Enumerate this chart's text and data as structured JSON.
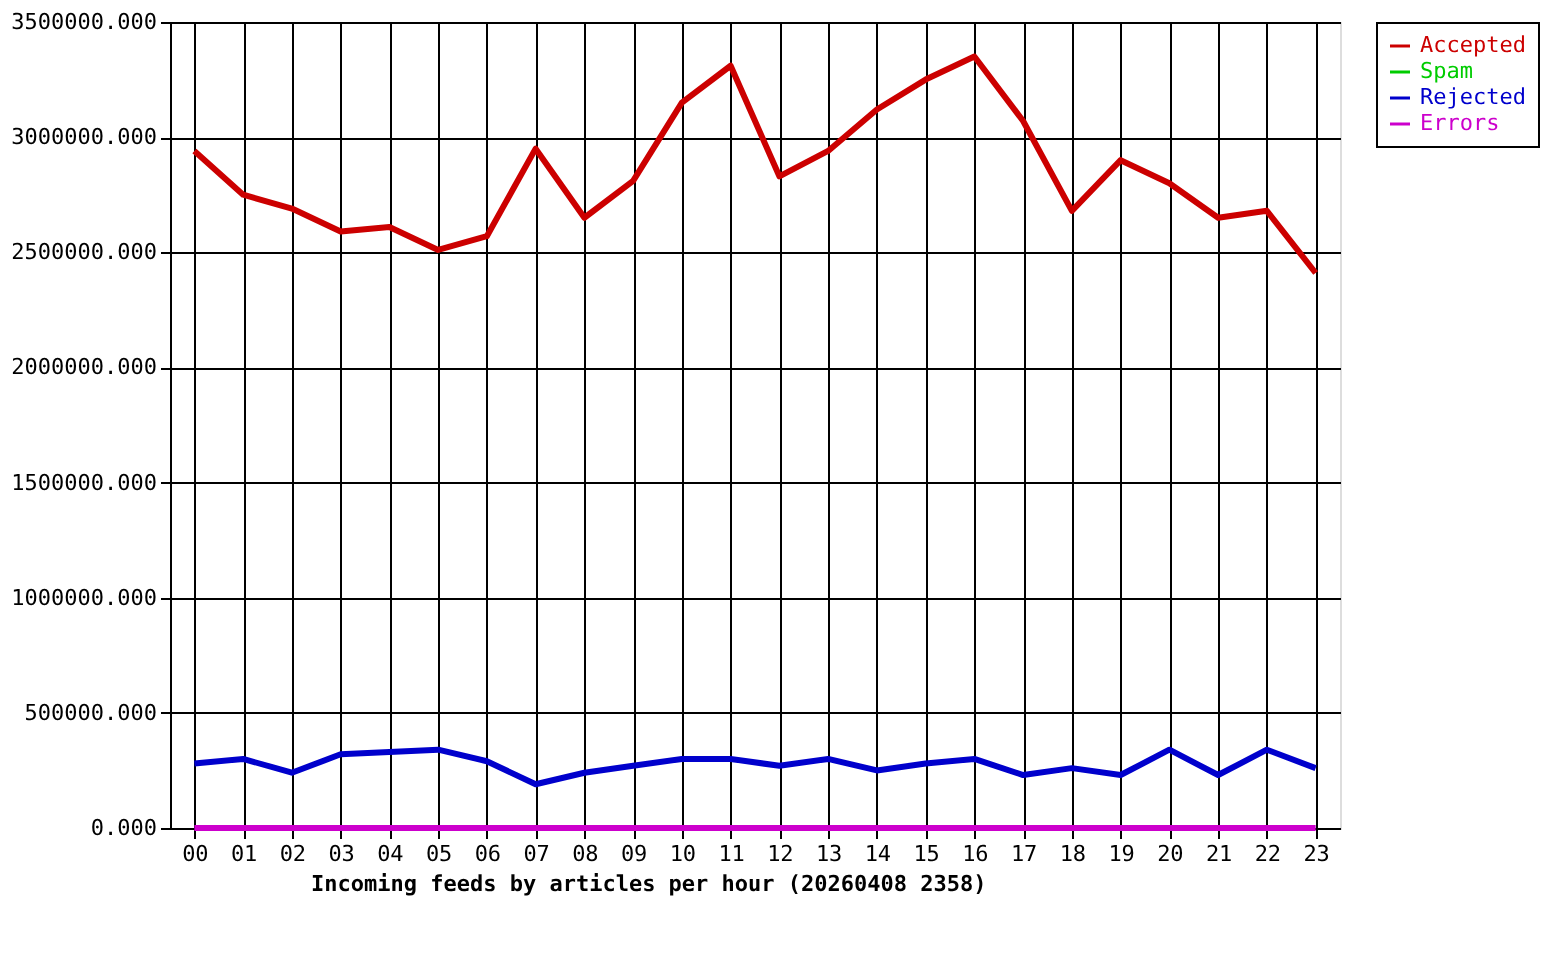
{
  "chart_data": {
    "type": "line",
    "xlabel": "Incoming feeds by articles per hour (20260408 2358)",
    "categories": [
      "00",
      "01",
      "02",
      "03",
      "04",
      "05",
      "06",
      "07",
      "08",
      "09",
      "10",
      "11",
      "12",
      "13",
      "14",
      "15",
      "16",
      "17",
      "18",
      "19",
      "20",
      "21",
      "22",
      "23"
    ],
    "series": [
      {
        "name": "Accepted",
        "color": "#cc0000",
        "values": [
          2940000,
          2750000,
          2690000,
          2590000,
          2610000,
          2510000,
          2570000,
          2950000,
          2650000,
          2810000,
          3150000,
          3310000,
          2830000,
          2940000,
          3120000,
          3250000,
          3350000,
          3070000,
          2680000,
          2900000,
          2800000,
          2650000,
          2680000,
          2410000
        ]
      },
      {
        "name": "Spam",
        "color": "#00cc00",
        "values": [
          null,
          null,
          null,
          null,
          null,
          null,
          null,
          null,
          null,
          null,
          null,
          null,
          null,
          null,
          null,
          null,
          null,
          null,
          null,
          null,
          null,
          null,
          null,
          null
        ]
      },
      {
        "name": "Rejected",
        "color": "#0000cc",
        "values": [
          280000,
          300000,
          240000,
          320000,
          330000,
          340000,
          290000,
          190000,
          240000,
          270000,
          300000,
          300000,
          270000,
          300000,
          250000,
          280000,
          300000,
          230000,
          260000,
          230000,
          340000,
          230000,
          340000,
          260000
        ]
      },
      {
        "name": "Errors",
        "color": "#cc00cc",
        "values": [
          0,
          0,
          0,
          0,
          0,
          0,
          0,
          0,
          0,
          0,
          0,
          0,
          0,
          0,
          0,
          0,
          0,
          0,
          0,
          0,
          0,
          0,
          0,
          0
        ]
      }
    ],
    "ylim": [
      0,
      3500000
    ],
    "yticks": [
      {
        "value": 0,
        "label": "0.000"
      },
      {
        "value": 500000,
        "label": "500000.000"
      },
      {
        "value": 1000000,
        "label": "1000000.000"
      },
      {
        "value": 1500000,
        "label": "1500000.000"
      },
      {
        "value": 2000000,
        "label": "2000000.000"
      },
      {
        "value": 2500000,
        "label": "2500000.000"
      },
      {
        "value": 3000000,
        "label": "3000000.000"
      },
      {
        "value": 3500000,
        "label": "3500000.000"
      }
    ],
    "grid": true,
    "legend": "top right",
    "marker": "none",
    "line_style": "solid"
  }
}
